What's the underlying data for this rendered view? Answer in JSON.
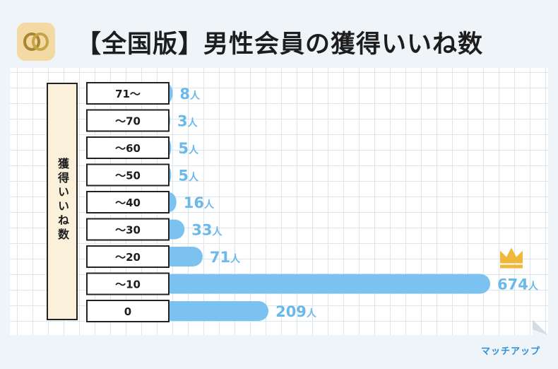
{
  "title": "【全国版】男性会員の獲得いいね数",
  "ylabel": "獲得いいね数",
  "brand": "マッチアップ",
  "colors": {
    "bar": "#7cc2f0",
    "value_text": "#6bb8ea",
    "label_box_fill": "#fbf0d9",
    "crown": "#f0b83a"
  },
  "chart_data": {
    "type": "bar",
    "orientation": "horizontal",
    "ylabel": "獲得いいね数",
    "categories": [
      "71〜",
      "〜70",
      "〜60",
      "〜50",
      "〜40",
      "〜30",
      "〜20",
      "〜10",
      "0"
    ],
    "values": [
      8,
      3,
      5,
      5,
      16,
      33,
      71,
      674,
      209
    ],
    "unit": "人",
    "highlight": "〜10",
    "grid": true
  }
}
